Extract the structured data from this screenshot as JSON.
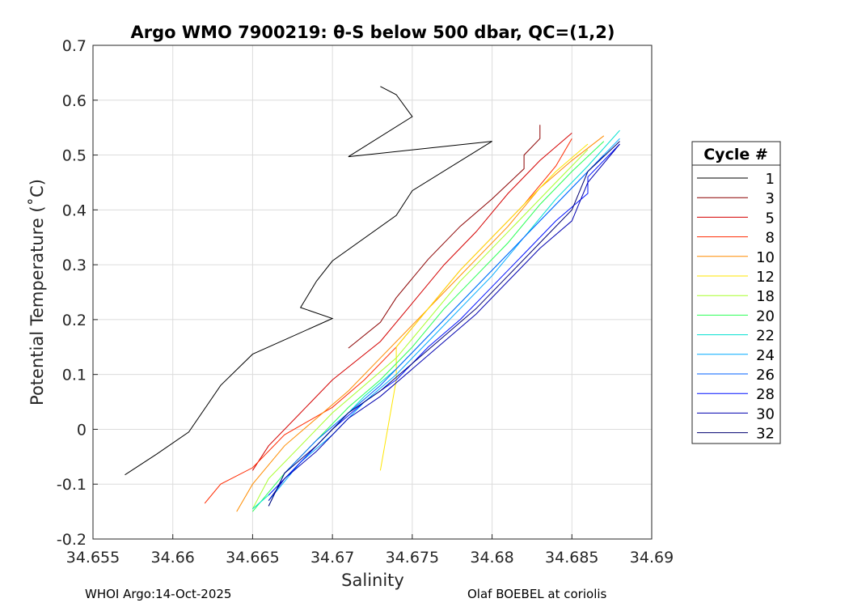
{
  "chart_data": {
    "type": "line",
    "title": "Argo WMO 7900219: θ-S below 500 dbar,  QC=(1,2)",
    "xlabel": "Salinity",
    "ylabel": "Potential Temperature (˚C)",
    "xlim": [
      34.655,
      34.69
    ],
    "ylim": [
      -0.2,
      0.7
    ],
    "xticks": [
      "34.655",
      "34.66",
      "34.665",
      "34.67",
      "34.675",
      "34.68",
      "34.685",
      "34.69"
    ],
    "yticks": [
      "-0.2",
      "-0.1",
      "0",
      "0.1",
      "0.2",
      "0.3",
      "0.4",
      "0.5",
      "0.6",
      "0.7"
    ],
    "grid": true,
    "legend_title": "Cycle #",
    "legend_position": "right-outside",
    "series": [
      {
        "name": "1",
        "color": "#000000",
        "points": [
          [
            34.673,
            0.625
          ],
          [
            34.674,
            0.61
          ],
          [
            34.675,
            0.57
          ],
          [
            34.671,
            0.497
          ],
          [
            34.68,
            0.525
          ],
          [
            34.675,
            0.435
          ],
          [
            34.674,
            0.39
          ],
          [
            34.67,
            0.307
          ],
          [
            34.669,
            0.27
          ],
          [
            34.668,
            0.222
          ],
          [
            34.67,
            0.202
          ],
          [
            34.665,
            0.137
          ],
          [
            34.663,
            0.08
          ],
          [
            34.661,
            -0.005
          ],
          [
            34.659,
            -0.045
          ],
          [
            34.657,
            -0.083
          ]
        ]
      },
      {
        "name": "3",
        "color": "#8b0000",
        "points": [
          [
            34.683,
            0.555
          ],
          [
            34.683,
            0.53
          ],
          [
            34.682,
            0.5
          ],
          [
            34.682,
            0.475
          ],
          [
            34.68,
            0.42
          ],
          [
            34.678,
            0.37
          ],
          [
            34.676,
            0.31
          ],
          [
            34.674,
            0.24
          ],
          [
            34.673,
            0.195
          ],
          [
            34.671,
            0.148
          ]
        ]
      },
      {
        "name": "5",
        "color": "#d40000",
        "points": [
          [
            34.685,
            0.54
          ],
          [
            34.683,
            0.49
          ],
          [
            34.681,
            0.43
          ],
          [
            34.679,
            0.36
          ],
          [
            34.677,
            0.3
          ],
          [
            34.675,
            0.23
          ],
          [
            34.673,
            0.16
          ],
          [
            34.67,
            0.09
          ],
          [
            34.668,
            0.03
          ],
          [
            34.666,
            -0.03
          ],
          [
            34.665,
            -0.075
          ]
        ]
      },
      {
        "name": "8",
        "color": "#ff2a00",
        "points": [
          [
            34.685,
            0.53
          ],
          [
            34.684,
            0.48
          ],
          [
            34.682,
            0.41
          ],
          [
            34.68,
            0.35
          ],
          [
            34.678,
            0.29
          ],
          [
            34.676,
            0.22
          ],
          [
            34.674,
            0.15
          ],
          [
            34.672,
            0.09
          ],
          [
            34.67,
            0.04
          ],
          [
            34.667,
            -0.01
          ],
          [
            34.665,
            -0.07
          ],
          [
            34.663,
            -0.1
          ],
          [
            34.662,
            -0.135
          ]
        ]
      },
      {
        "name": "10",
        "color": "#ff8c00",
        "points": [
          [
            34.687,
            0.535
          ],
          [
            34.685,
            0.49
          ],
          [
            34.683,
            0.44
          ],
          [
            34.681,
            0.37
          ],
          [
            34.679,
            0.31
          ],
          [
            34.677,
            0.25
          ],
          [
            34.675,
            0.19
          ],
          [
            34.673,
            0.13
          ],
          [
            34.671,
            0.07
          ],
          [
            34.669,
            0.02
          ],
          [
            34.667,
            -0.03
          ],
          [
            34.665,
            -0.1
          ],
          [
            34.664,
            -0.15
          ]
        ]
      },
      {
        "name": "12",
        "color": "#ffe600",
        "points": [
          [
            34.686,
            0.52
          ],
          [
            34.684,
            0.47
          ],
          [
            34.682,
            0.41
          ],
          [
            34.68,
            0.35
          ],
          [
            34.678,
            0.29
          ],
          [
            34.676,
            0.22
          ],
          [
            34.674,
            0.15
          ],
          [
            34.674,
            0.09
          ],
          [
            34.673,
            -0.075
          ]
        ]
      },
      {
        "name": "18",
        "color": "#a8ff2a",
        "points": [
          [
            34.686,
            0.51
          ],
          [
            34.684,
            0.45
          ],
          [
            34.682,
            0.39
          ],
          [
            34.68,
            0.33
          ],
          [
            34.678,
            0.27
          ],
          [
            34.676,
            0.2
          ],
          [
            34.674,
            0.13
          ],
          [
            34.672,
            0.08
          ],
          [
            34.67,
            0.03
          ],
          [
            34.668,
            -0.03
          ],
          [
            34.666,
            -0.09
          ],
          [
            34.665,
            -0.145
          ]
        ]
      },
      {
        "name": "20",
        "color": "#2aff55",
        "points": [
          [
            34.687,
            0.525
          ],
          [
            34.685,
            0.47
          ],
          [
            34.683,
            0.41
          ],
          [
            34.681,
            0.34
          ],
          [
            34.679,
            0.28
          ],
          [
            34.677,
            0.22
          ],
          [
            34.675,
            0.15
          ],
          [
            34.673,
            0.09
          ],
          [
            34.671,
            0.04
          ],
          [
            34.669,
            -0.02
          ],
          [
            34.667,
            -0.08
          ],
          [
            34.665,
            -0.15
          ]
        ]
      },
      {
        "name": "22",
        "color": "#00e0d0",
        "points": [
          [
            34.688,
            0.545
          ],
          [
            34.686,
            0.48
          ],
          [
            34.684,
            0.42
          ],
          [
            34.682,
            0.35
          ],
          [
            34.68,
            0.29
          ],
          [
            34.678,
            0.23
          ],
          [
            34.676,
            0.17
          ],
          [
            34.674,
            0.11
          ],
          [
            34.672,
            0.06
          ],
          [
            34.67,
            0.0
          ],
          [
            34.668,
            -0.06
          ],
          [
            34.666,
            -0.12
          ],
          [
            34.665,
            -0.145
          ]
        ]
      },
      {
        "name": "24",
        "color": "#00aaff",
        "points": [
          [
            34.688,
            0.53
          ],
          [
            34.686,
            0.47
          ],
          [
            34.684,
            0.41
          ],
          [
            34.682,
            0.35
          ],
          [
            34.68,
            0.28
          ],
          [
            34.678,
            0.22
          ],
          [
            34.676,
            0.16
          ],
          [
            34.674,
            0.1
          ],
          [
            34.672,
            0.05
          ],
          [
            34.67,
            -0.01
          ],
          [
            34.668,
            -0.06
          ],
          [
            34.666,
            -0.13
          ]
        ]
      },
      {
        "name": "26",
        "color": "#0060ff",
        "points": [
          [
            34.687,
            0.5
          ],
          [
            34.685,
            0.44
          ],
          [
            34.683,
            0.38
          ],
          [
            34.681,
            0.32
          ],
          [
            34.679,
            0.26
          ],
          [
            34.677,
            0.2
          ],
          [
            34.675,
            0.14
          ],
          [
            34.673,
            0.08
          ],
          [
            34.671,
            0.03
          ],
          [
            34.669,
            -0.02
          ],
          [
            34.667,
            -0.08
          ],
          [
            34.666,
            -0.14
          ]
        ]
      },
      {
        "name": "28",
        "color": "#0010ff",
        "points": [
          [
            34.688,
            0.52
          ],
          [
            34.686,
            0.46
          ],
          [
            34.686,
            0.43
          ],
          [
            34.684,
            0.38
          ],
          [
            34.682,
            0.32
          ],
          [
            34.68,
            0.26
          ],
          [
            34.678,
            0.2
          ],
          [
            34.676,
            0.15
          ],
          [
            34.674,
            0.09
          ],
          [
            34.672,
            0.05
          ],
          [
            34.67,
            0.0
          ],
          [
            34.668,
            -0.06
          ],
          [
            34.666,
            -0.12
          ]
        ]
      },
      {
        "name": "30",
        "color": "#0000b0",
        "points": [
          [
            34.688,
            0.52
          ],
          [
            34.686,
            0.45
          ],
          [
            34.685,
            0.38
          ],
          [
            34.683,
            0.33
          ],
          [
            34.681,
            0.27
          ],
          [
            34.679,
            0.21
          ],
          [
            34.677,
            0.16
          ],
          [
            34.675,
            0.11
          ],
          [
            34.673,
            0.06
          ],
          [
            34.671,
            0.02
          ],
          [
            34.669,
            -0.04
          ],
          [
            34.667,
            -0.09
          ],
          [
            34.666,
            -0.13
          ]
        ]
      },
      {
        "name": "32",
        "color": "#000070",
        "points": [
          [
            34.688,
            0.525
          ],
          [
            34.686,
            0.47
          ],
          [
            34.685,
            0.4
          ],
          [
            34.683,
            0.34
          ],
          [
            34.681,
            0.28
          ],
          [
            34.679,
            0.22
          ],
          [
            34.677,
            0.17
          ],
          [
            34.675,
            0.12
          ],
          [
            34.673,
            0.07
          ],
          [
            34.671,
            0.03
          ],
          [
            34.669,
            -0.03
          ],
          [
            34.667,
            -0.08
          ],
          [
            34.666,
            -0.14
          ]
        ]
      }
    ]
  },
  "footer": {
    "left": "WHOI Argo:14-Oct-2025",
    "right": "Olaf BOEBEL at coriolis"
  }
}
